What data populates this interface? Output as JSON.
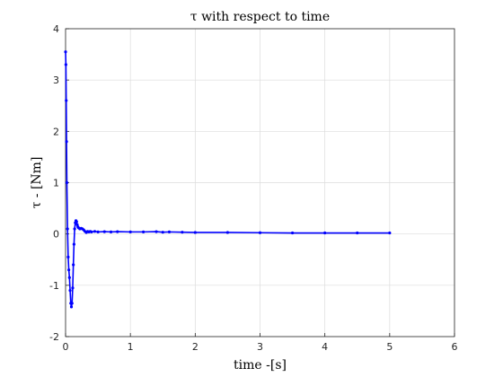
{
  "chart_data": {
    "type": "line",
    "title": "τ with respect to time",
    "xlabel": "time -[s]",
    "ylabel": "τ - [Nm]",
    "xlim": [
      0,
      6
    ],
    "ylim": [
      -2,
      4
    ],
    "xticks": [
      0,
      1,
      2,
      3,
      4,
      5,
      6
    ],
    "yticks": [
      -2,
      -1,
      0,
      1,
      2,
      3,
      4
    ],
    "xtick_labels": [
      "0",
      "1",
      "2",
      "3",
      "4",
      "5",
      "6"
    ],
    "ytick_labels": [
      "-2",
      "-1",
      "0",
      "1",
      "2",
      "3",
      "4"
    ],
    "grid": true,
    "series": [
      {
        "color": "#0000ff",
        "marker": "dot",
        "x": [
          0,
          0.005,
          0.01,
          0.015,
          0.02,
          0.03,
          0.04,
          0.05,
          0.06,
          0.07,
          0.08,
          0.09,
          0.1,
          0.11,
          0.12,
          0.13,
          0.14,
          0.15,
          0.16,
          0.17,
          0.18,
          0.19,
          0.2,
          0.22,
          0.24,
          0.26,
          0.28,
          0.3,
          0.32,
          0.34,
          0.36,
          0.38,
          0.4,
          0.45,
          0.5,
          0.6,
          0.7,
          0.8,
          1.0,
          1.2,
          1.4,
          1.5,
          1.6,
          1.8,
          2.0,
          2.5,
          3.0,
          3.5,
          4.0,
          4.5,
          5.0
        ],
        "y": [
          3.55,
          3.3,
          2.6,
          1.8,
          1.0,
          0.1,
          -0.45,
          -0.7,
          -0.85,
          -1.1,
          -1.35,
          -1.42,
          -1.35,
          -1.05,
          -0.6,
          -0.2,
          0.1,
          0.22,
          0.26,
          0.24,
          0.18,
          0.14,
          0.12,
          0.1,
          0.11,
          0.1,
          0.08,
          0.05,
          0.03,
          0.05,
          0.04,
          0.05,
          0.04,
          0.05,
          0.04,
          0.045,
          0.04,
          0.045,
          0.04,
          0.04,
          0.045,
          0.035,
          0.04,
          0.035,
          0.03,
          0.03,
          0.025,
          0.02,
          0.02,
          0.02,
          0.02
        ]
      }
    ]
  }
}
